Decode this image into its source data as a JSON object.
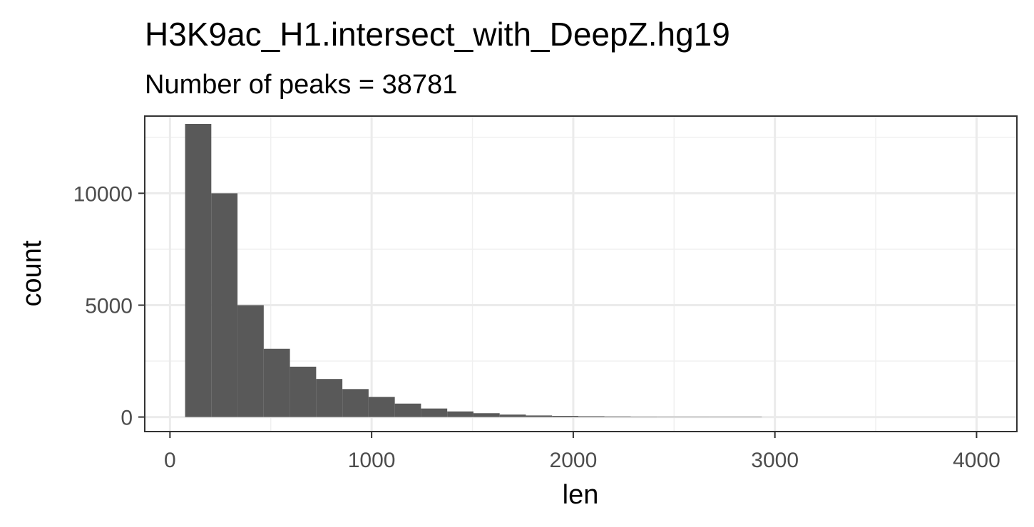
{
  "chart_data": {
    "type": "bar",
    "title": "H3K9ac_H1.intersect_with_DeepZ.hg19",
    "subtitle": "Number of peaks = 38781",
    "xlabel": "len",
    "ylabel": "count",
    "xlim": [
      -125,
      4200
    ],
    "ylim": [
      -650,
      13450
    ],
    "xticks": [
      0,
      1000,
      2000,
      3000,
      4000
    ],
    "xtick_labels": [
      "0",
      "1000",
      "2000",
      "3000",
      "4000"
    ],
    "yticks": [
      0,
      5000,
      10000
    ],
    "ytick_labels": [
      "0",
      "5000",
      "10000"
    ],
    "x_minor_breaks": [
      500,
      1500,
      2500,
      3500
    ],
    "y_minor_breaks": [
      2500,
      7500,
      12500
    ],
    "grid": true,
    "bar_color": "#595959",
    "bins": [
      {
        "x0": 75,
        "x1": 205,
        "count": 13100
      },
      {
        "x0": 205,
        "x1": 335,
        "count": 10000
      },
      {
        "x0": 335,
        "x1": 465,
        "count": 5000
      },
      {
        "x0": 465,
        "x1": 595,
        "count": 3050
      },
      {
        "x0": 595,
        "x1": 725,
        "count": 2250
      },
      {
        "x0": 725,
        "x1": 855,
        "count": 1700
      },
      {
        "x0": 855,
        "x1": 985,
        "count": 1250
      },
      {
        "x0": 985,
        "x1": 1115,
        "count": 900
      },
      {
        "x0": 1115,
        "x1": 1245,
        "count": 600
      },
      {
        "x0": 1245,
        "x1": 1375,
        "count": 380
      },
      {
        "x0": 1375,
        "x1": 1505,
        "count": 250
      },
      {
        "x0": 1505,
        "x1": 1635,
        "count": 170
      },
      {
        "x0": 1635,
        "x1": 1765,
        "count": 110
      },
      {
        "x0": 1765,
        "x1": 1895,
        "count": 70
      },
      {
        "x0": 1895,
        "x1": 2025,
        "count": 50
      },
      {
        "x0": 2025,
        "x1": 2155,
        "count": 35
      },
      {
        "x0": 2155,
        "x1": 2285,
        "count": 25
      },
      {
        "x0": 2285,
        "x1": 2415,
        "count": 18
      },
      {
        "x0": 2415,
        "x1": 2545,
        "count": 14
      },
      {
        "x0": 2545,
        "x1": 2675,
        "count": 10
      },
      {
        "x0": 2675,
        "x1": 2805,
        "count": 8
      },
      {
        "x0": 2805,
        "x1": 2935,
        "count": 6
      }
    ]
  }
}
